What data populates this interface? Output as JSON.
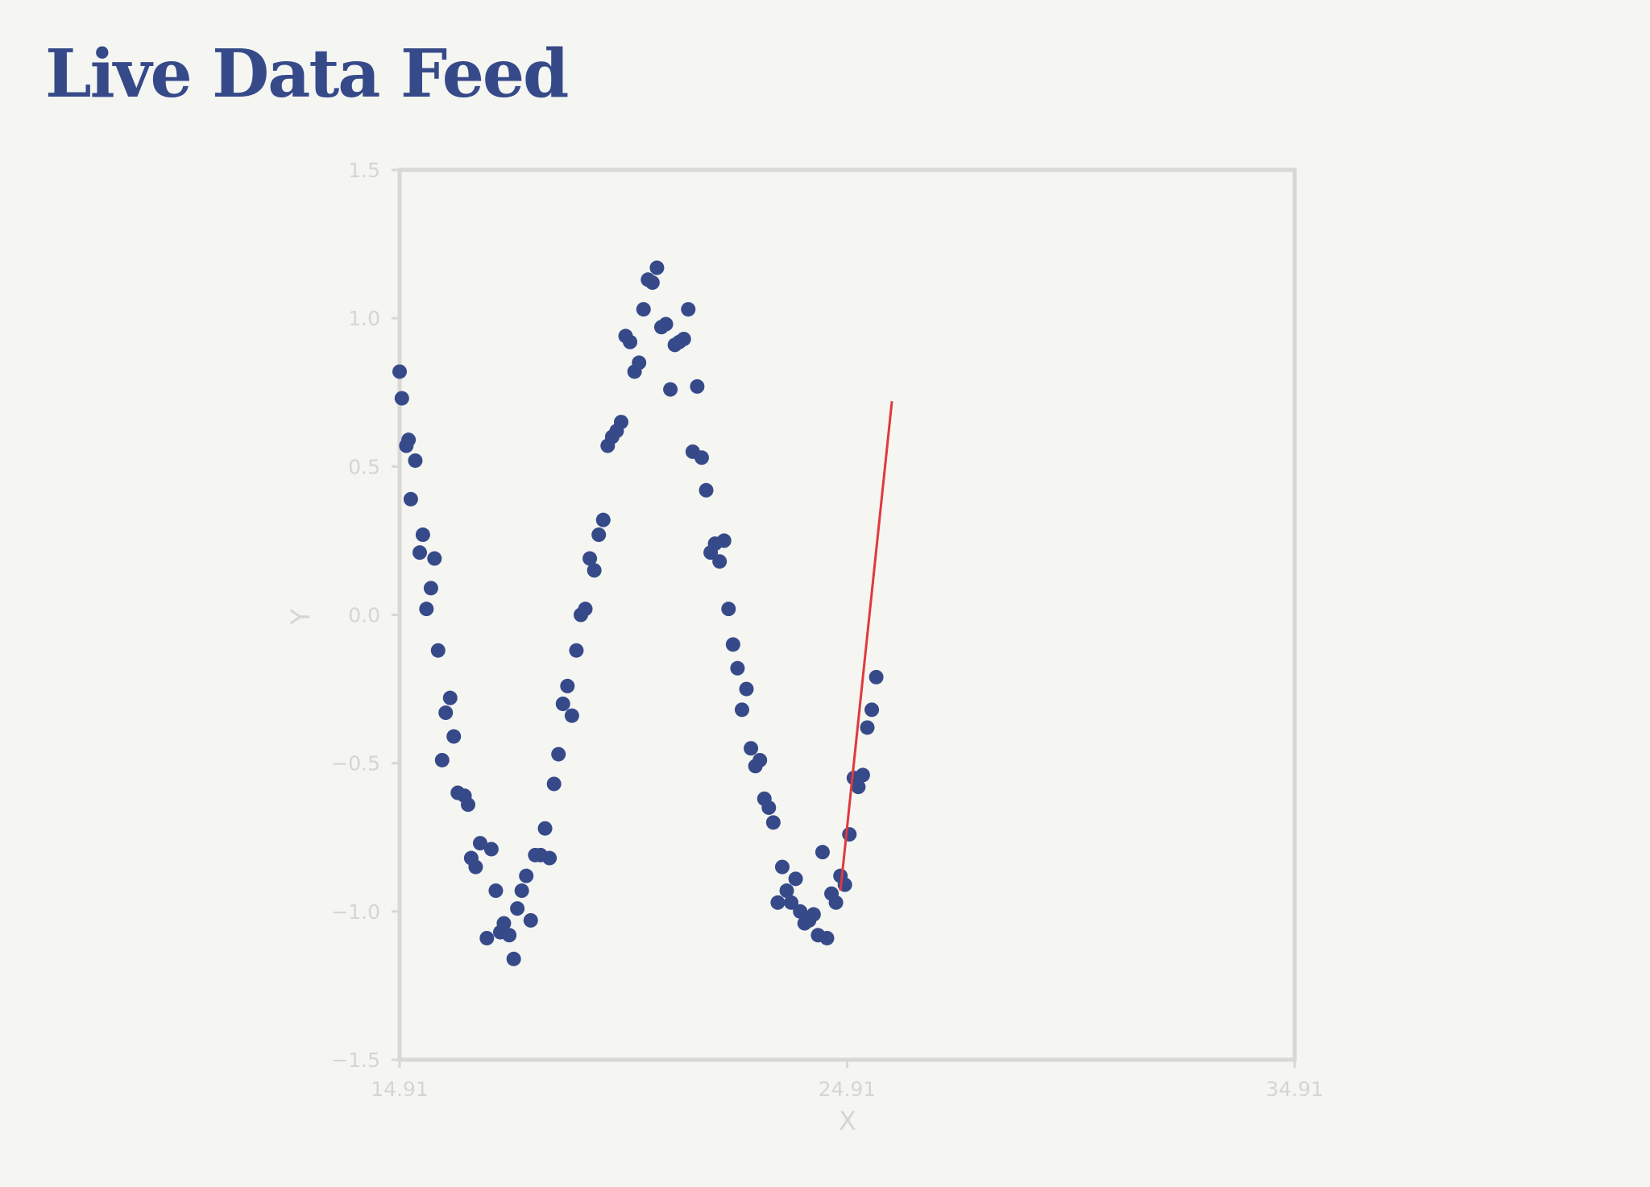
{
  "title": "Live Data Feed",
  "colors": {
    "background": "#f5f5f1",
    "title": "#364a8a",
    "points": "#364a8a",
    "trend_line": "#e0393e",
    "axis": "#d5d5d2",
    "frame": "#d8d8d5"
  },
  "chart_data": {
    "type": "scatter",
    "title": "",
    "xlabel": "X",
    "ylabel": "Y",
    "xlim": [
      14.91,
      34.91
    ],
    "ylim": [
      -1.5,
      1.5
    ],
    "x_ticks": [
      14.91,
      24.91,
      34.91
    ],
    "x_tick_labels": [
      "14.91",
      "24.91",
      "34.91"
    ],
    "y_ticks": [
      -1.5,
      -1.0,
      -0.5,
      0.0,
      0.5,
      1.0,
      1.5
    ],
    "y_tick_labels": [
      "−1.5",
      "−1.0",
      "−0.5",
      "0.0",
      "0.5",
      "1.0",
      "1.5"
    ],
    "grid": false,
    "series": [
      {
        "type": "scatter",
        "points": [
          [
            14.91,
            0.82
          ],
          [
            14.96,
            0.73
          ],
          [
            15.06,
            0.57
          ],
          [
            15.11,
            0.59
          ],
          [
            15.16,
            0.39
          ],
          [
            15.26,
            0.52
          ],
          [
            15.36,
            0.21
          ],
          [
            15.43,
            0.27
          ],
          [
            15.51,
            0.02
          ],
          [
            15.61,
            0.09
          ],
          [
            15.69,
            0.19
          ],
          [
            15.77,
            -0.12
          ],
          [
            15.86,
            -0.49
          ],
          [
            15.94,
            -0.33
          ],
          [
            16.04,
            -0.28
          ],
          [
            16.12,
            -0.41
          ],
          [
            16.21,
            -0.6
          ],
          [
            16.36,
            -0.61
          ],
          [
            16.44,
            -0.64
          ],
          [
            16.51,
            -0.82
          ],
          [
            16.61,
            -0.85
          ],
          [
            16.71,
            -0.77
          ],
          [
            16.86,
            -1.09
          ],
          [
            16.96,
            -0.79
          ],
          [
            17.06,
            -0.93
          ],
          [
            17.16,
            -1.07
          ],
          [
            17.24,
            -1.04
          ],
          [
            17.36,
            -1.08
          ],
          [
            17.46,
            -1.16
          ],
          [
            17.54,
            -0.99
          ],
          [
            17.64,
            -0.93
          ],
          [
            17.74,
            -0.88
          ],
          [
            17.84,
            -1.03
          ],
          [
            17.94,
            -0.81
          ],
          [
            18.06,
            -0.81
          ],
          [
            18.16,
            -0.72
          ],
          [
            18.26,
            -0.82
          ],
          [
            18.36,
            -0.57
          ],
          [
            18.46,
            -0.47
          ],
          [
            18.56,
            -0.3
          ],
          [
            18.66,
            -0.24
          ],
          [
            18.76,
            -0.34
          ],
          [
            18.86,
            -0.12
          ],
          [
            18.96,
            0.0
          ],
          [
            19.06,
            0.02
          ],
          [
            19.16,
            0.19
          ],
          [
            19.26,
            0.15
          ],
          [
            19.36,
            0.27
          ],
          [
            19.46,
            0.32
          ],
          [
            19.56,
            0.57
          ],
          [
            19.66,
            0.6
          ],
          [
            19.76,
            0.62
          ],
          [
            19.86,
            0.65
          ],
          [
            19.96,
            0.94
          ],
          [
            20.06,
            0.92
          ],
          [
            20.16,
            0.82
          ],
          [
            20.26,
            0.85
          ],
          [
            20.36,
            1.03
          ],
          [
            20.46,
            1.13
          ],
          [
            20.56,
            1.12
          ],
          [
            20.66,
            1.17
          ],
          [
            20.76,
            0.97
          ],
          [
            20.86,
            0.98
          ],
          [
            20.96,
            0.76
          ],
          [
            21.06,
            0.91
          ],
          [
            21.16,
            0.92
          ],
          [
            21.26,
            0.93
          ],
          [
            21.36,
            1.03
          ],
          [
            21.46,
            0.55
          ],
          [
            21.56,
            0.77
          ],
          [
            21.66,
            0.53
          ],
          [
            21.76,
            0.42
          ],
          [
            21.86,
            0.21
          ],
          [
            21.96,
            0.24
          ],
          [
            22.06,
            0.18
          ],
          [
            22.16,
            0.25
          ],
          [
            22.26,
            0.02
          ],
          [
            22.36,
            -0.1
          ],
          [
            22.46,
            -0.18
          ],
          [
            22.56,
            -0.32
          ],
          [
            22.66,
            -0.25
          ],
          [
            22.76,
            -0.45
          ],
          [
            22.86,
            -0.51
          ],
          [
            22.96,
            -0.49
          ],
          [
            23.06,
            -0.62
          ],
          [
            23.16,
            -0.65
          ],
          [
            23.26,
            -0.7
          ],
          [
            23.36,
            -0.97
          ],
          [
            23.46,
            -0.85
          ],
          [
            23.56,
            -0.93
          ],
          [
            23.66,
            -0.97
          ],
          [
            23.76,
            -0.89
          ],
          [
            23.86,
            -1.0
          ],
          [
            23.96,
            -1.04
          ],
          [
            24.06,
            -1.03
          ],
          [
            24.16,
            -1.01
          ],
          [
            24.26,
            -1.08
          ],
          [
            24.36,
            -0.8
          ],
          [
            24.46,
            -1.09
          ],
          [
            24.56,
            -0.94
          ],
          [
            24.66,
            -0.97
          ],
          [
            24.76,
            -0.88
          ],
          [
            24.86,
            -0.91
          ],
          [
            24.96,
            -0.74
          ],
          [
            25.06,
            -0.55
          ],
          [
            25.16,
            -0.58
          ],
          [
            25.26,
            -0.54
          ],
          [
            25.36,
            -0.38
          ],
          [
            25.46,
            -0.32
          ],
          [
            25.56,
            -0.21
          ]
        ]
      },
      {
        "type": "line",
        "points": [
          [
            24.76,
            -0.93
          ],
          [
            25.91,
            0.72
          ]
        ]
      }
    ]
  }
}
